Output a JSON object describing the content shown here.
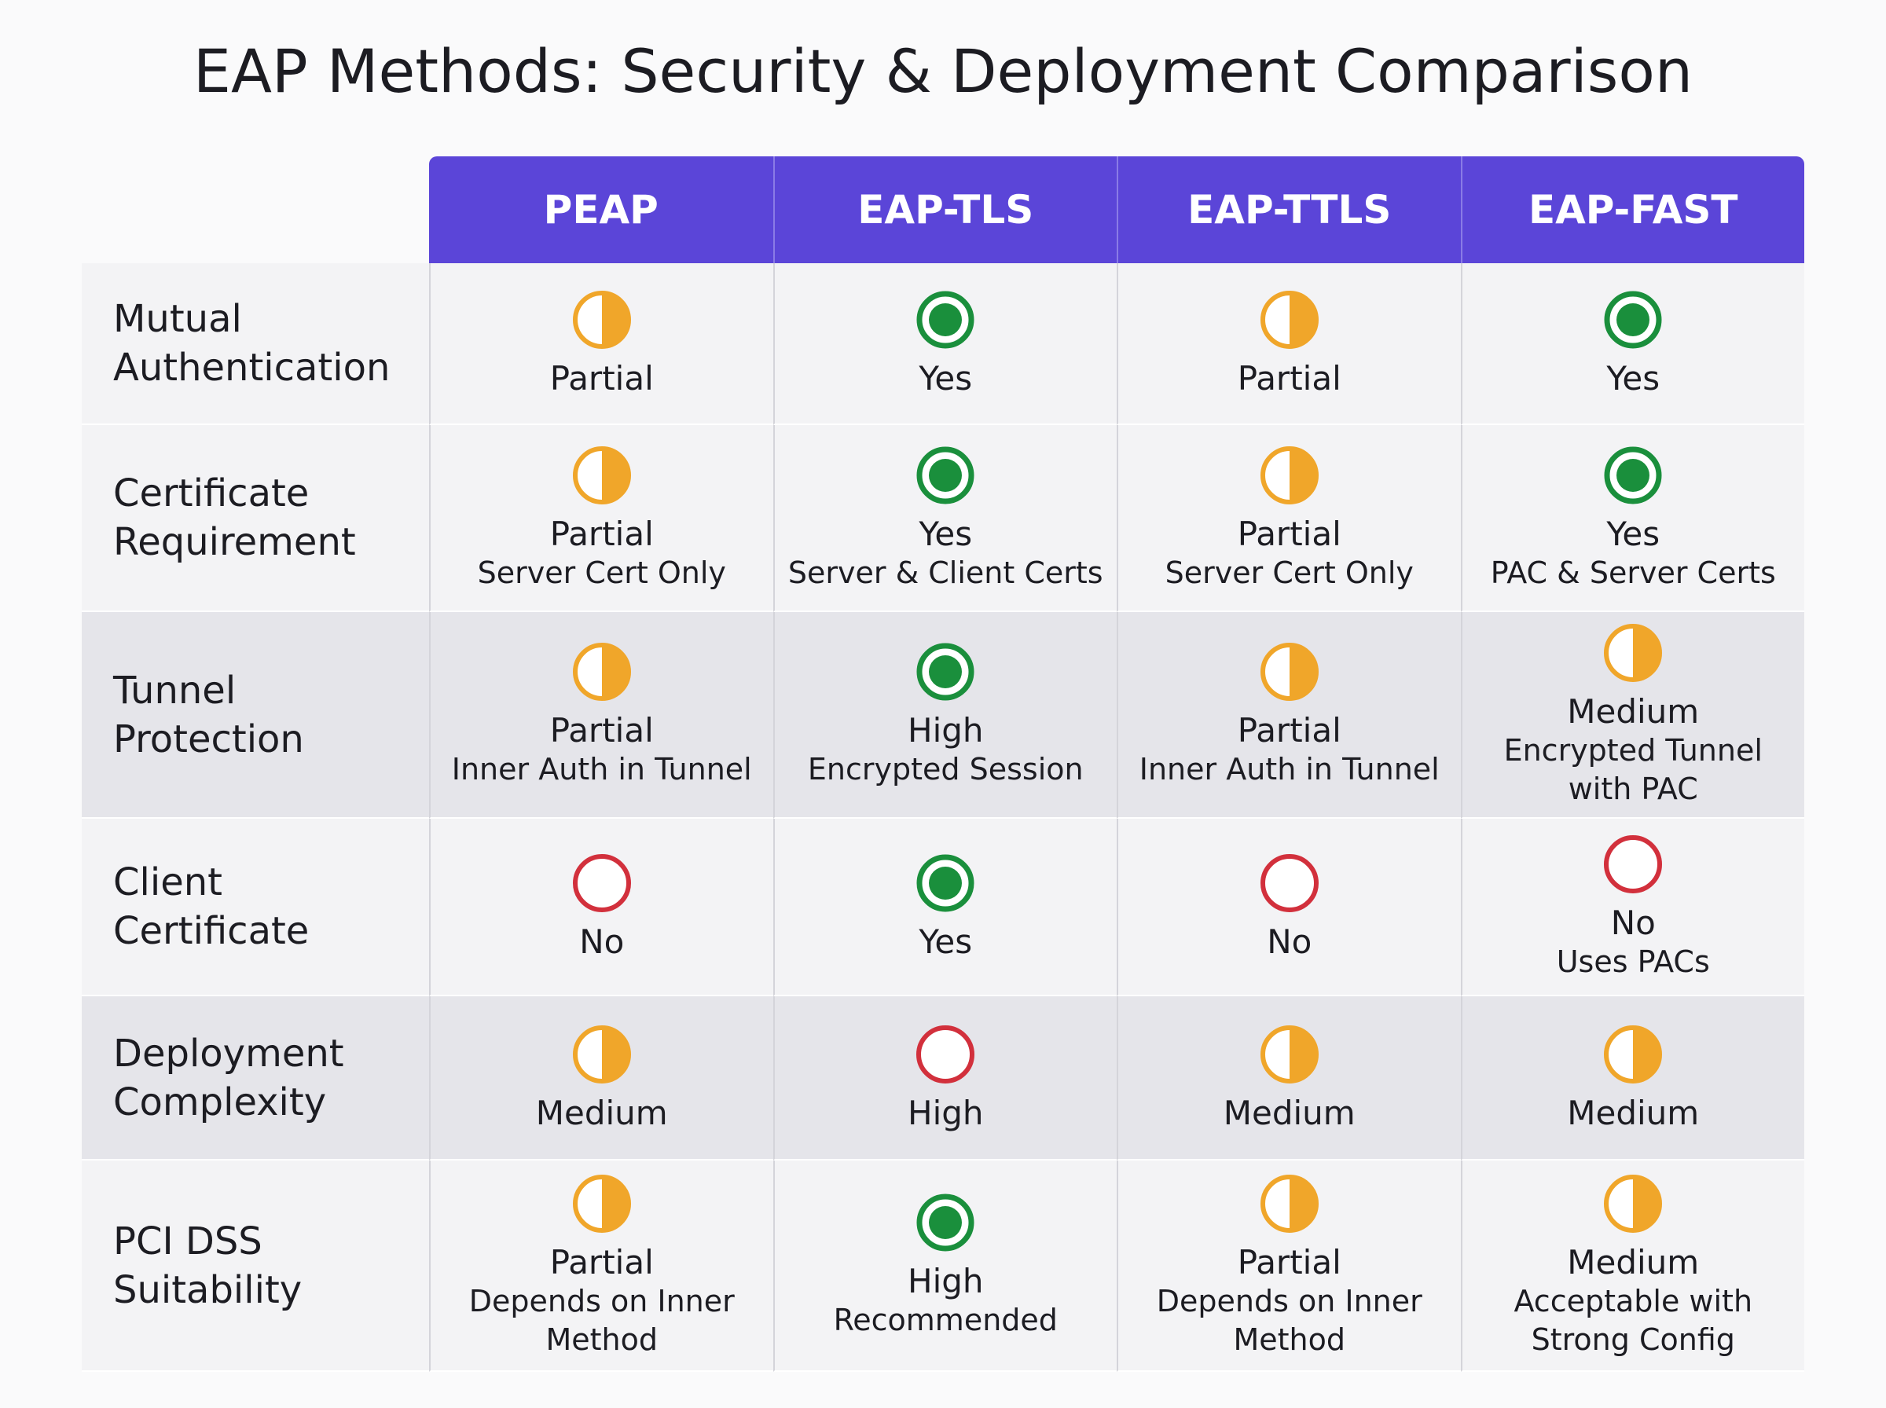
{
  "title": "EAP Methods: Security & Deployment Comparison",
  "table": {
    "columns": [
      "PEAP",
      "EAP-TLS",
      "EAP-TTLS",
      "EAP-FAST"
    ],
    "rows": [
      {
        "label": "Mutual Authentication",
        "cells": [
          {
            "icon": "half",
            "status": "Partial",
            "notes": []
          },
          {
            "icon": "full",
            "status": "Yes",
            "notes": []
          },
          {
            "icon": "half",
            "status": "Partial",
            "notes": []
          },
          {
            "icon": "full",
            "status": "Yes",
            "notes": []
          }
        ]
      },
      {
        "label": "Certificate Requirement",
        "cells": [
          {
            "icon": "half",
            "status": "Partial",
            "notes": [
              "Server Cert Only"
            ]
          },
          {
            "icon": "full",
            "status": "Yes",
            "notes": [
              "Server & Client Certs"
            ]
          },
          {
            "icon": "half",
            "status": "Partial",
            "notes": [
              "Server Cert Only"
            ]
          },
          {
            "icon": "full",
            "status": "Yes",
            "notes": [
              "PAC & Server Certs"
            ]
          }
        ]
      },
      {
        "label": "Tunnel Protection",
        "cells": [
          {
            "icon": "half",
            "status": "Partial",
            "notes": [
              "Inner Auth in Tunnel"
            ]
          },
          {
            "icon": "full",
            "status": "High",
            "notes": [
              "Encrypted Session"
            ]
          },
          {
            "icon": "half",
            "status": "Partial",
            "notes": [
              "Inner Auth in Tunnel"
            ]
          },
          {
            "icon": "half",
            "status": "Medium",
            "notes": [
              "Encrypted Tunnel",
              "with PAC"
            ]
          }
        ]
      },
      {
        "label": "Client Certificate",
        "cells": [
          {
            "icon": "empty",
            "status": "No",
            "notes": []
          },
          {
            "icon": "full",
            "status": "Yes",
            "notes": []
          },
          {
            "icon": "empty",
            "status": "No",
            "notes": []
          },
          {
            "icon": "empty",
            "status": "No",
            "notes": [
              "Uses PACs"
            ]
          }
        ]
      },
      {
        "label": "Deployment Complexity",
        "cells": [
          {
            "icon": "half",
            "status": "Medium",
            "notes": []
          },
          {
            "icon": "empty",
            "status": "High",
            "notes": []
          },
          {
            "icon": "half",
            "status": "Medium",
            "notes": []
          },
          {
            "icon": "half",
            "status": "Medium",
            "notes": []
          }
        ]
      },
      {
        "label": "PCI DSS Suitability",
        "cells": [
          {
            "icon": "half",
            "status": "Partial",
            "notes": [
              "Depends on Inner",
              "Method"
            ]
          },
          {
            "icon": "full",
            "status": "High",
            "notes": [
              "Recommended"
            ]
          },
          {
            "icon": "half",
            "status": "Partial",
            "notes": [
              "Depends on Inner",
              "Method"
            ]
          },
          {
            "icon": "half",
            "status": "Medium",
            "notes": [
              "Acceptable with",
              "Strong Config"
            ]
          }
        ]
      }
    ]
  }
}
